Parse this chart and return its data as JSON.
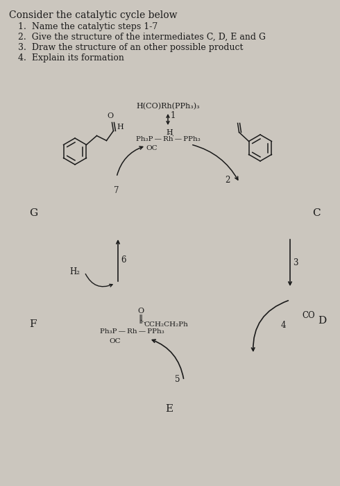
{
  "bg_color": "#cbc6be",
  "text_color": "#1a1a1a",
  "title_text": "Consider the catalytic cycle below",
  "items": [
    "1.  Name the catalytic steps 1-7",
    "2.  Give the structure of the intermediates C, D, E and G",
    "3.  Draw the structure of an other possible product",
    "4.  Explain its formation"
  ],
  "step1": "1",
  "step2": "2",
  "step3": "3",
  "step4": "4",
  "step5": "5",
  "step6": "6",
  "step7": "7",
  "labelG": "G",
  "labelC": "C",
  "labelD": "D",
  "labelF": "F",
  "labelE": "E",
  "h2": "H₂",
  "co": "CO"
}
